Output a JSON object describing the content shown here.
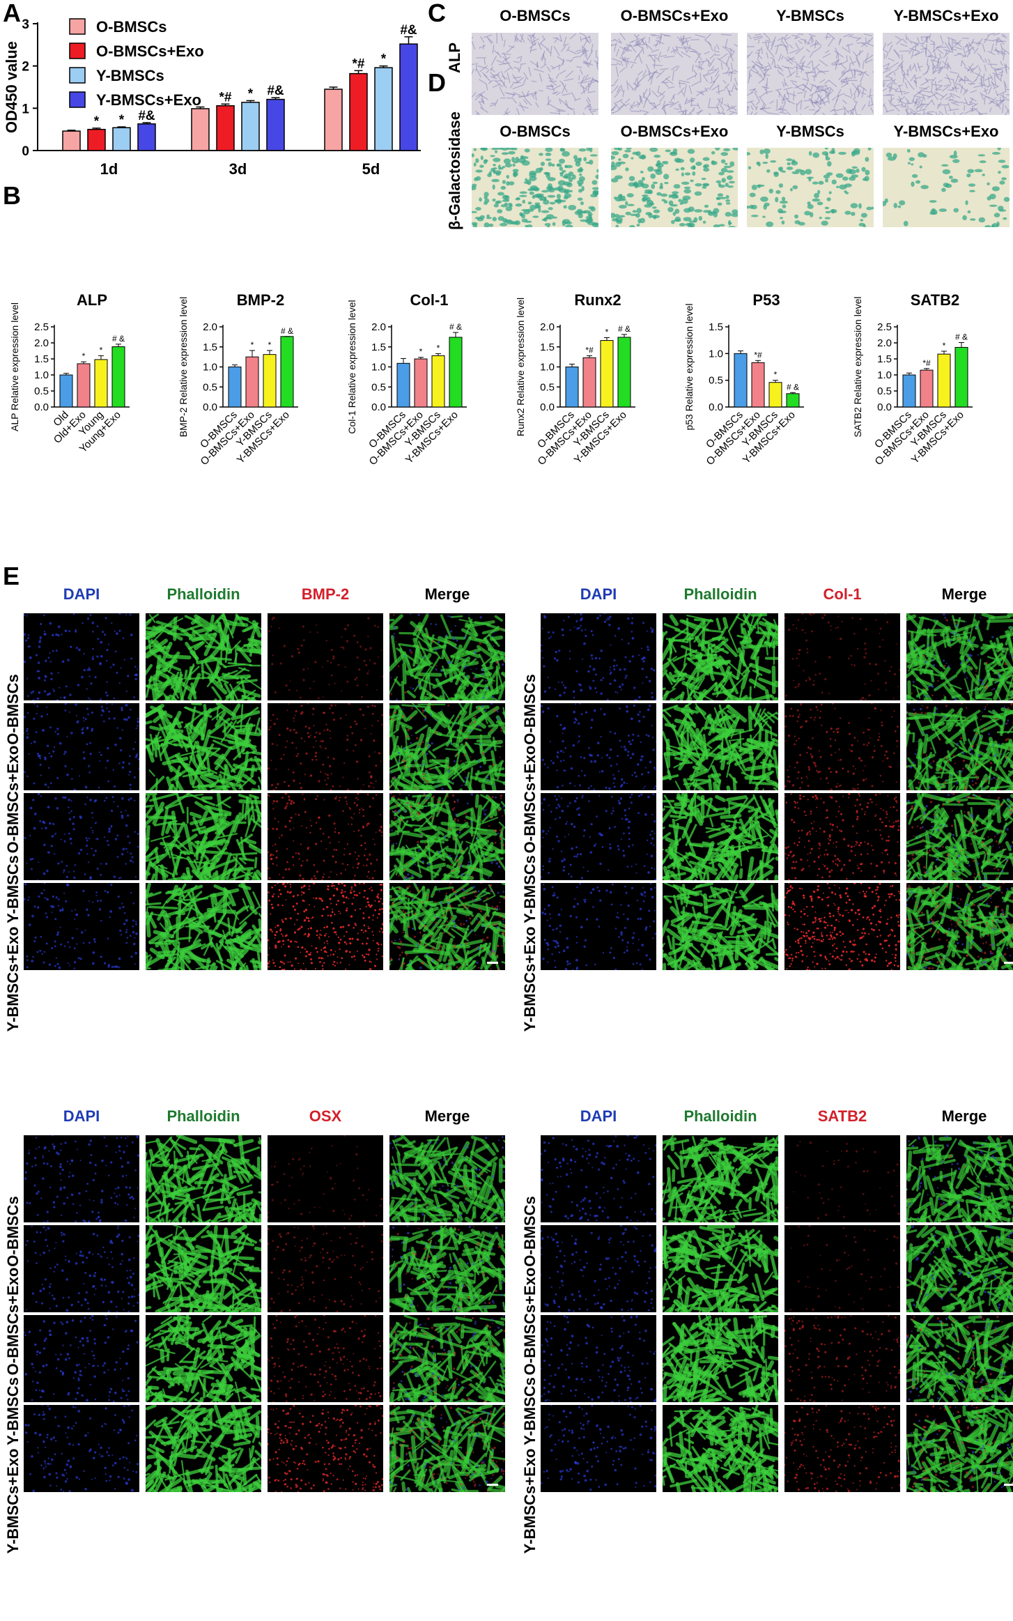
{
  "panel_letters": [
    "A",
    "B",
    "C",
    "D",
    "E"
  ],
  "colors": {
    "o_bmscs": "#f7a4a4",
    "o_bmscs_exo": "#ee1c24",
    "y_bmscs": "#9ccdf2",
    "y_bmscs_exo": "#4747e6",
    "q_blue": "#4a9de6",
    "q_pink": "#f2828a",
    "q_yellow": "#f7f21e",
    "q_green": "#22dd22",
    "dapi": "#1f3cb4",
    "phalloidin": "#1e7a2e",
    "marker": "#d2202a",
    "alp_stain": "#8b87b8",
    "gal_stain": "#3aa88a"
  },
  "chart_data": [
    {
      "type": "bar",
      "panel": "A",
      "ylabel": "OD450 value",
      "ylim": [
        0,
        3
      ],
      "yticks": [
        "0",
        "1",
        "2",
        "3"
      ],
      "categories": [
        "1d",
        "3d",
        "5d"
      ],
      "series": [
        {
          "name": "O-BMSCs",
          "values": [
            0.46,
            0.99,
            1.45
          ],
          "errors": [
            0.02,
            0.04,
            0.05
          ],
          "annotations": [
            "",
            "",
            ""
          ]
        },
        {
          "name": "O-BMSCs+Exo",
          "values": [
            0.5,
            1.06,
            1.82
          ],
          "errors": [
            0.03,
            0.04,
            0.07
          ],
          "annotations": [
            "*",
            "*#",
            "*#"
          ]
        },
        {
          "name": "Y-BMSCs",
          "values": [
            0.54,
            1.14,
            1.96
          ],
          "errors": [
            0.02,
            0.04,
            0.04
          ],
          "annotations": [
            "*",
            "*",
            "*"
          ]
        },
        {
          "name": "Y-BMSCs+Exo",
          "values": [
            0.63,
            1.21,
            2.52
          ],
          "errors": [
            0.03,
            0.04,
            0.17
          ],
          "annotations": [
            "#&",
            "#&",
            "#&"
          ]
        }
      ]
    },
    {
      "type": "bar",
      "panel": "B",
      "title": "ALP",
      "ylabel": "ALP Relative expression level",
      "ylim": [
        0,
        2.5
      ],
      "yticks": [
        "0.0",
        "0.5",
        "1.0",
        "1.5",
        "2.0",
        "2.5"
      ],
      "categories": [
        "Old",
        "Old+Exo",
        "Young",
        "Young+Exo"
      ],
      "values": [
        1.0,
        1.35,
        1.48,
        1.88
      ],
      "errors": [
        0.05,
        0.06,
        0.12,
        0.08
      ],
      "annotations": [
        "",
        "*",
        "*",
        "# &"
      ]
    },
    {
      "type": "bar",
      "panel": "B",
      "title": "BMP-2",
      "ylabel": "BMP-2 Relative expression level",
      "ylim": [
        0,
        2.0
      ],
      "yticks": [
        "0.0",
        "0.5",
        "1.0",
        "1.5",
        "2.0"
      ],
      "categories": [
        "O-BMSCs",
        "O-BMSCs+Exo",
        "Y-BMSCs",
        "Y-BMSCs+Exo"
      ],
      "values": [
        1.0,
        1.25,
        1.31,
        1.76
      ],
      "errors": [
        0.05,
        0.16,
        0.1,
        0.0
      ],
      "annotations": [
        "",
        "*",
        "*",
        "# &"
      ]
    },
    {
      "type": "bar",
      "panel": "B",
      "title": "Col-1",
      "ylabel": "Col-1 Relative expression level",
      "ylim": [
        0,
        2.0
      ],
      "yticks": [
        "0.0",
        "0.5",
        "1.0",
        "1.5",
        "2.0"
      ],
      "categories": [
        "O-BMSCs",
        "O-BMSCs+Exo",
        "Y-BMSCs",
        "Y-BMSCs+Exo"
      ],
      "values": [
        1.09,
        1.2,
        1.28,
        1.74
      ],
      "errors": [
        0.12,
        0.04,
        0.05,
        0.12
      ],
      "annotations": [
        "",
        "*",
        "*",
        "# &"
      ]
    },
    {
      "type": "bar",
      "panel": "B",
      "title": "Runx2",
      "ylabel": "Runx2 Relative expression level",
      "ylim": [
        0,
        2.0
      ],
      "yticks": [
        "0.0",
        "0.5",
        "1.0",
        "1.5",
        "2.0"
      ],
      "categories": [
        "O-BMSCs",
        "O-BMSCs+Exo",
        "Y-BMSCs",
        "Y-BMSCs+Exo"
      ],
      "values": [
        1.0,
        1.23,
        1.66,
        1.74
      ],
      "errors": [
        0.07,
        0.05,
        0.07,
        0.07
      ],
      "annotations": [
        "",
        "*#",
        "*",
        "# &"
      ]
    },
    {
      "type": "bar",
      "panel": "B",
      "title": "P53",
      "ylabel": "p53 Relative expression level",
      "ylim": [
        0,
        1.5
      ],
      "yticks": [
        "0.0",
        "0.5",
        "1.0",
        "1.5"
      ],
      "categories": [
        "O-BMSCs",
        "O-BMSCs+Exo",
        "Y-BMSCs",
        "Y-BMSCs+Exo"
      ],
      "values": [
        1.0,
        0.83,
        0.46,
        0.25
      ],
      "errors": [
        0.05,
        0.04,
        0.04,
        0.02
      ],
      "annotations": [
        "",
        "*#",
        "*",
        "# &"
      ]
    },
    {
      "type": "bar",
      "panel": "B",
      "title": "SATB2",
      "ylabel": "SATB2 Relative expression level",
      "ylim": [
        0,
        2.5
      ],
      "yticks": [
        "0.0",
        "0.5",
        "1.0",
        "1.5",
        "2.0",
        "2.5"
      ],
      "categories": [
        "O-BMSCs",
        "O-BMSCs+Exo",
        "Y-BMSCs",
        "Y-BMSCs+Exo"
      ],
      "values": [
        1.0,
        1.15,
        1.65,
        1.86
      ],
      "errors": [
        0.06,
        0.05,
        0.09,
        0.15
      ],
      "annotations": [
        "",
        "*#",
        "*",
        "# &"
      ]
    }
  ],
  "panel_c": {
    "row_label": "ALP",
    "columns": [
      "O-BMSCs",
      "O-BMSCs+Exo",
      "Y-BMSCs",
      "Y-BMSCs+Exo"
    ]
  },
  "panel_d": {
    "row_label": "β-Galactosidase",
    "columns": [
      "O-BMSCs",
      "O-BMSCs+Exo",
      "Y-BMSCs",
      "Y-BMSCs+Exo"
    ]
  },
  "panel_e": {
    "row_labels": [
      "O-BMSCs",
      "O-BMSCs+Exo",
      "Y-BMSCs",
      "Y-BMSCs+Exo"
    ],
    "blocks": [
      {
        "channels": [
          "DAPI",
          "Phalloidin",
          "BMP-2",
          "Merge"
        ],
        "marker_intensity": [
          0.08,
          0.22,
          0.3,
          0.6
        ]
      },
      {
        "channels": [
          "DAPI",
          "Phalloidin",
          "Col-1",
          "Merge"
        ],
        "marker_intensity": [
          0.1,
          0.24,
          0.38,
          0.6
        ]
      },
      {
        "channels": [
          "DAPI",
          "Phalloidin",
          "OSX",
          "Merge"
        ],
        "marker_intensity": [
          0.04,
          0.16,
          0.26,
          0.45
        ]
      },
      {
        "channels": [
          "DAPI",
          "Phalloidin",
          "SATB2",
          "Merge"
        ],
        "marker_intensity": [
          0.02,
          0.04,
          0.22,
          0.3
        ]
      }
    ]
  }
}
